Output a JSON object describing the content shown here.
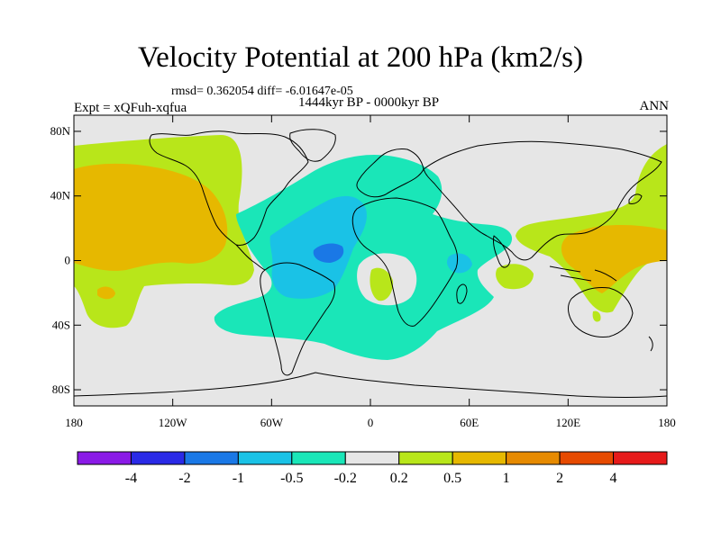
{
  "header": {
    "title": "Velocity Potential at 200 hPa (km2/s)",
    "stats": "rmsd= 0.362054 diff= -6.01647e-05",
    "period": "1444kyr BP - 0000kyr BP",
    "expt": "Expt = xQFuh-xqfua",
    "season": "ANN"
  },
  "axes": {
    "lon_ticks": [
      {
        "lon": -180,
        "label": "180"
      },
      {
        "lon": -120,
        "label": "120W"
      },
      {
        "lon": -60,
        "label": "60W"
      },
      {
        "lon": 0,
        "label": "0"
      },
      {
        "lon": 60,
        "label": "60E"
      },
      {
        "lon": 120,
        "label": "120E"
      },
      {
        "lon": 180,
        "label": "180"
      }
    ],
    "lat_ticks": [
      {
        "lat": 80,
        "label": "80N"
      },
      {
        "lat": 40,
        "label": "40N"
      },
      {
        "lat": 0,
        "label": "0"
      },
      {
        "lat": -40,
        "label": "40S"
      },
      {
        "lat": -80,
        "label": "80S"
      }
    ]
  },
  "colorbar": {
    "colors": [
      "#8a1ae6",
      "#2a2ae6",
      "#1a78e6",
      "#1ac2e6",
      "#1ae6b8",
      "#e6e6e6",
      "#b8e61a",
      "#e6b800",
      "#e68a00",
      "#e64a00",
      "#e61a1a"
    ],
    "labels": [
      "-4",
      "-2",
      "-1",
      "-0.5",
      "-0.2",
      "0.2",
      "0.5",
      "1",
      "2",
      "4"
    ]
  },
  "colors": {
    "background_fill": "#e6e6e6",
    "ocean_fill": "#e6e6e6"
  }
}
